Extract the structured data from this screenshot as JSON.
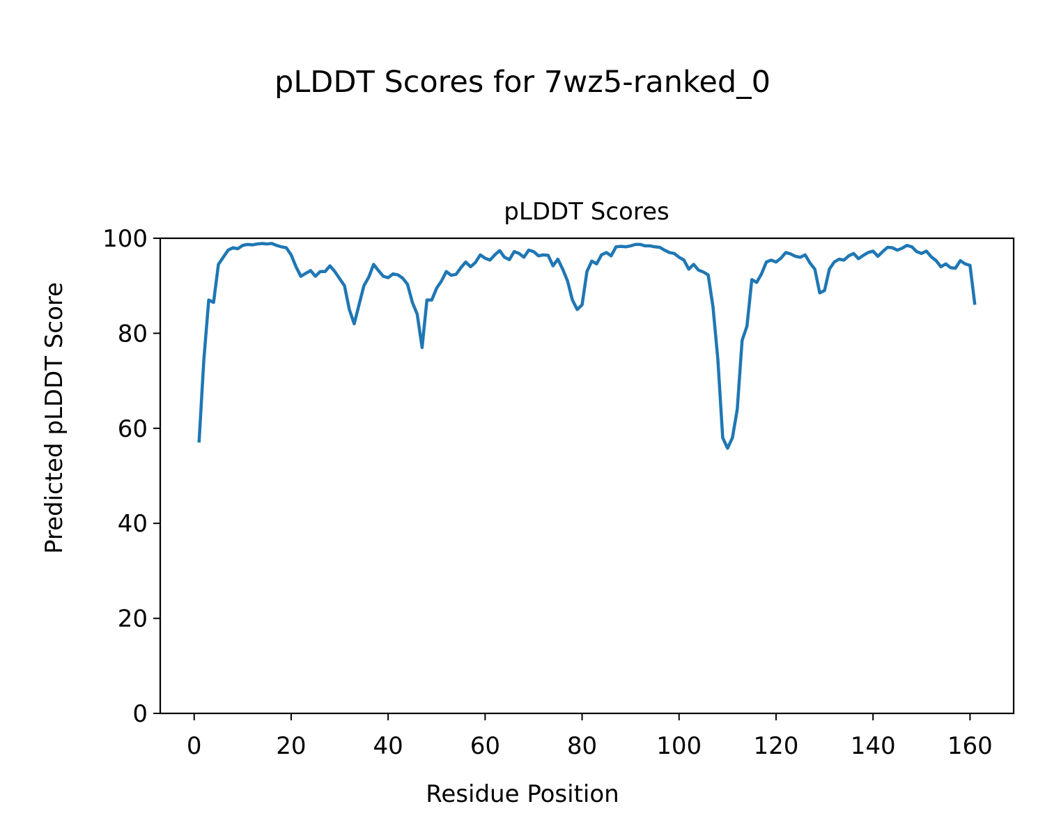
{
  "figure": {
    "suptitle": "pLDDT Scores for 7wz5-ranked_0"
  },
  "chart_data": {
    "type": "line",
    "title": "pLDDT Scores",
    "xlabel": "Residue Position",
    "ylabel": "Predicted pLDDT Score",
    "xlim": [
      -7,
      169
    ],
    "ylim": [
      0,
      100
    ],
    "xticks": [
      "0",
      "20",
      "40",
      "60",
      "80",
      "100",
      "120",
      "140",
      "160"
    ],
    "yticks": [
      "0",
      "20",
      "40",
      "60",
      "80",
      "100"
    ],
    "grid": false,
    "line_color": "#1f77b4",
    "x": [
      1,
      2,
      3,
      4,
      5,
      6,
      7,
      8,
      9,
      10,
      11,
      12,
      13,
      14,
      15,
      16,
      17,
      18,
      19,
      20,
      21,
      22,
      23,
      24,
      25,
      26,
      27,
      28,
      29,
      30,
      31,
      32,
      33,
      34,
      35,
      36,
      37,
      38,
      39,
      40,
      41,
      42,
      43,
      44,
      45,
      46,
      47,
      48,
      49,
      50,
      51,
      52,
      53,
      54,
      55,
      56,
      57,
      58,
      59,
      60,
      61,
      62,
      63,
      64,
      65,
      66,
      67,
      68,
      69,
      70,
      71,
      72,
      73,
      74,
      75,
      76,
      77,
      78,
      79,
      80,
      81,
      82,
      83,
      84,
      85,
      86,
      87,
      88,
      89,
      90,
      91,
      92,
      93,
      94,
      95,
      96,
      97,
      98,
      99,
      100,
      101,
      102,
      103,
      104,
      105,
      106,
      107,
      108,
      109,
      110,
      111,
      112,
      113,
      114,
      115,
      116,
      117,
      118,
      119,
      120,
      121,
      122,
      123,
      124,
      125,
      126,
      127,
      128,
      129,
      130,
      131,
      132,
      133,
      134,
      135,
      136,
      137,
      138,
      139,
      140,
      141,
      142,
      143,
      144,
      145,
      146,
      147,
      148,
      149,
      150,
      151,
      152,
      153,
      154,
      155,
      156,
      157,
      158,
      159,
      160,
      161
    ],
    "y": [
      57.0,
      74.5,
      87.0,
      86.5,
      94.5,
      96.0,
      97.5,
      98.0,
      97.8,
      98.5,
      98.7,
      98.6,
      98.8,
      98.9,
      98.8,
      98.9,
      98.5,
      98.2,
      98.0,
      96.5,
      94.0,
      92.0,
      92.6,
      93.2,
      92.0,
      93.0,
      93.0,
      94.2,
      93.0,
      91.5,
      90.0,
      85.0,
      82.0,
      86.0,
      90.0,
      91.8,
      94.5,
      93.2,
      92.0,
      91.7,
      92.5,
      92.3,
      91.6,
      90.3,
      86.5,
      84.0,
      77.0,
      87.0,
      87.0,
      89.5,
      91.0,
      93.0,
      92.2,
      92.4,
      93.8,
      95.0,
      94.0,
      94.9,
      96.5,
      95.8,
      95.4,
      96.5,
      97.4,
      96.0,
      95.5,
      97.2,
      96.8,
      96.0,
      97.5,
      97.2,
      96.3,
      96.5,
      96.4,
      94.2,
      95.6,
      93.5,
      91.0,
      87.0,
      85.0,
      86.0,
      93.0,
      95.2,
      94.6,
      96.5,
      97.0,
      96.3,
      98.2,
      98.3,
      98.2,
      98.4,
      98.7,
      98.7,
      98.4,
      98.4,
      98.2,
      98.1,
      97.5,
      97.0,
      96.8,
      96.0,
      95.4,
      93.5,
      94.5,
      93.3,
      92.9,
      92.3,
      85.5,
      74.5,
      58.0,
      55.8,
      58.0,
      64.0,
      78.5,
      81.5,
      91.3,
      90.7,
      92.5,
      95.0,
      95.4,
      95.0,
      95.8,
      97.0,
      96.7,
      96.2,
      96.0,
      96.5,
      94.8,
      93.5,
      88.5,
      89.0,
      93.5,
      95.0,
      95.6,
      95.4,
      96.3,
      96.8,
      95.7,
      96.4,
      97.0,
      97.3,
      96.2,
      97.2,
      98.1,
      98.0,
      97.5,
      97.9,
      98.5,
      98.2,
      97.2,
      96.8,
      97.3,
      96.1,
      95.3,
      94.0,
      94.6,
      93.8,
      93.7,
      95.3,
      94.6,
      94.3,
      86.0
    ]
  }
}
